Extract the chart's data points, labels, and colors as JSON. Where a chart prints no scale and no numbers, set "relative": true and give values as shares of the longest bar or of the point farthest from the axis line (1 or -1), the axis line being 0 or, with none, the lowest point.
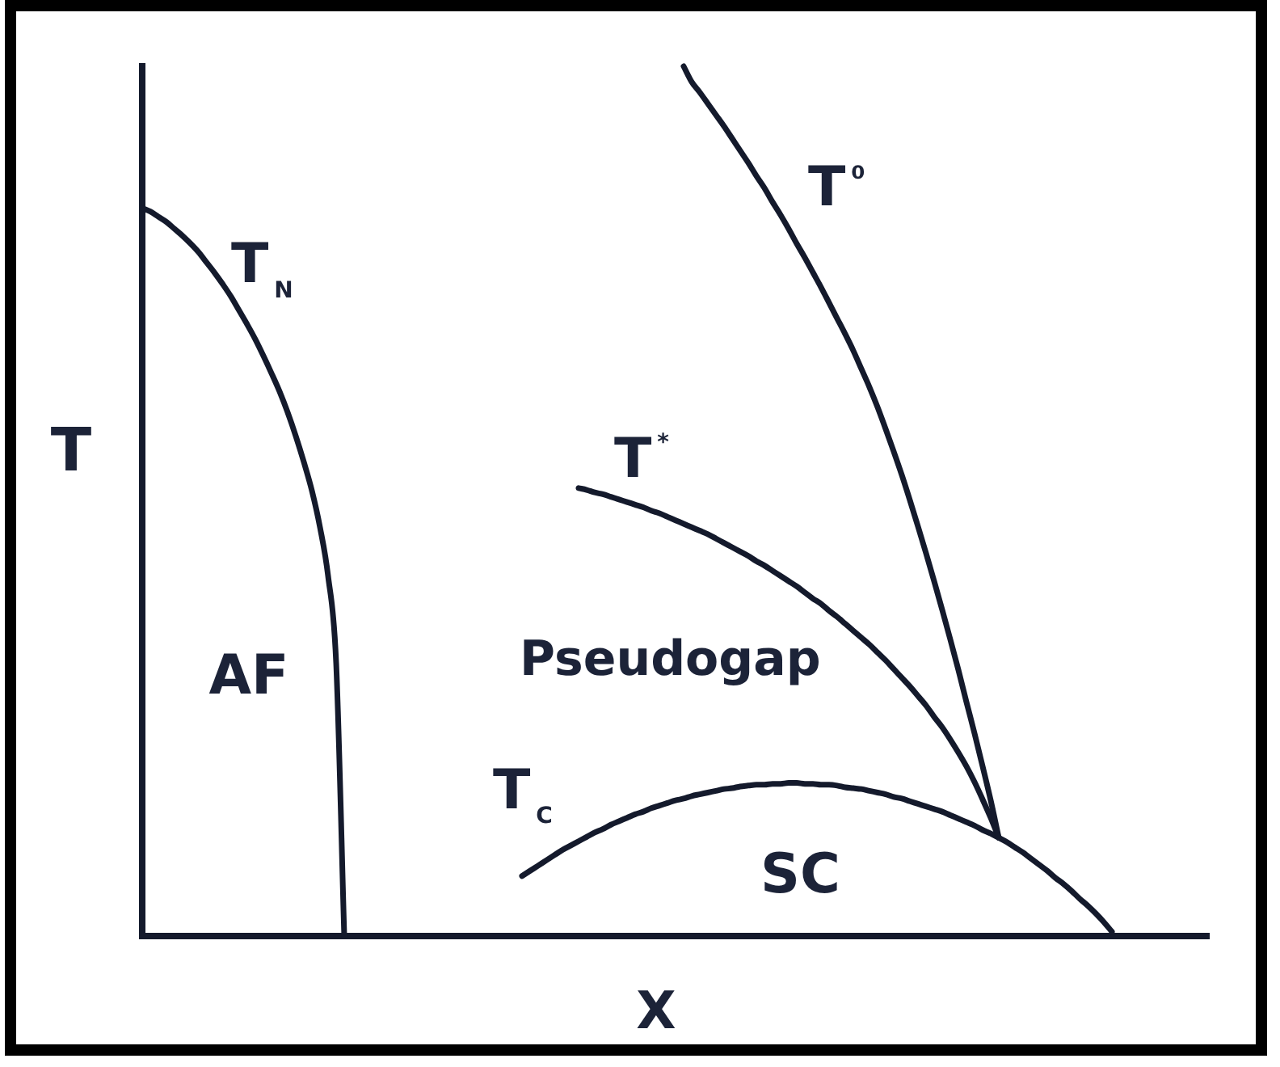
{
  "chart_data": {
    "type": "line",
    "xlabel": "X",
    "ylabel": "T",
    "relative": true,
    "tick_labels": false,
    "legend": false,
    "line_style": "solid",
    "categories": [
      null,
      null,
      null,
      null,
      null,
      null,
      null,
      null,
      null,
      null,
      null,
      null,
      null,
      null,
      null,
      null,
      null,
      null,
      null,
      null,
      null,
      null,
      null,
      null,
      null,
      null,
      null,
      null,
      null,
      null,
      null,
      null,
      null,
      null,
      null,
      null,
      null,
      null,
      null,
      null,
      null,
      null,
      null,
      null,
      null,
      null,
      null,
      null,
      null,
      null,
      null,
      null,
      null,
      null,
      null,
      null,
      null,
      null,
      null,
      null,
      null,
      null,
      null,
      null,
      null,
      null,
      null,
      null,
      null,
      null,
      null,
      null,
      null,
      null,
      null,
      null,
      null,
      null,
      null,
      null,
      null,
      null,
      null,
      null,
      null,
      null,
      null,
      null,
      null,
      null,
      null,
      null,
      null,
      null,
      null,
      null,
      null,
      null,
      null,
      null,
      null,
      null,
      null,
      null,
      null,
      null,
      null,
      null,
      null,
      null,
      null,
      null,
      null,
      null,
      null,
      null,
      null,
      null,
      null,
      null,
      null,
      null,
      null,
      null,
      null,
      null,
      null,
      null,
      null,
      null,
      null,
      null,
      null
    ],
    "series": [
      {
        "name": "T$_{N}$",
        "color": "#141a2c",
        "values": [
          0.837,
          0.833,
          0.827,
          0.821,
          0.813,
          0.805,
          0.796,
          0.786,
          0.774,
          0.762,
          0.749,
          0.735,
          0.719,
          0.703,
          0.686,
          0.667,
          0.647,
          0.626,
          0.602,
          0.575,
          0.545,
          0.512,
          0.47,
          0.414,
          0.314,
          0,
          null,
          null,
          null,
          null,
          null,
          null,
          null,
          null,
          null,
          null,
          null,
          null,
          null,
          null,
          null,
          null,
          null,
          null,
          null,
          null,
          null,
          null,
          null,
          null,
          null,
          null,
          null,
          null,
          null,
          null,
          null,
          null,
          null,
          null,
          null,
          null,
          null,
          null,
          null,
          null,
          null,
          null,
          null,
          null,
          null,
          null,
          null,
          null,
          null,
          null,
          null,
          null,
          null,
          null,
          null,
          null,
          null,
          null,
          null,
          null,
          null,
          null,
          null,
          null,
          null,
          null,
          null,
          null,
          null,
          null,
          null,
          null,
          null,
          null,
          null,
          null,
          null,
          null,
          null,
          null,
          null,
          null,
          null,
          null,
          null,
          null,
          null,
          null,
          null,
          null,
          null,
          null,
          null,
          null,
          null,
          null,
          null,
          null,
          null,
          null,
          null,
          null,
          null,
          null,
          null,
          null,
          null
        ]
      },
      {
        "name": "T⁰",
        "color": "#141a2c",
        "values": [
          null,
          null,
          null,
          null,
          null,
          null,
          null,
          null,
          null,
          null,
          null,
          null,
          null,
          null,
          null,
          null,
          null,
          null,
          null,
          null,
          null,
          null,
          null,
          null,
          null,
          null,
          null,
          null,
          null,
          null,
          null,
          null,
          null,
          null,
          null,
          null,
          null,
          null,
          null,
          null,
          null,
          null,
          null,
          null,
          null,
          null,
          null,
          null,
          null,
          null,
          null,
          null,
          null,
          null,
          null,
          null,
          null,
          null,
          null,
          null,
          null,
          null,
          null,
          null,
          null,
          null,
          null,
          1,
          0.982,
          0.97,
          0.957,
          0.944,
          0.931,
          0.917,
          0.903,
          0.889,
          0.874,
          0.86,
          0.844,
          0.829,
          0.813,
          0.796,
          0.78,
          0.763,
          0.746,
          0.728,
          0.71,
          0.692,
          0.673,
          0.652,
          0.631,
          0.608,
          0.583,
          0.557,
          0.53,
          0.501,
          0.471,
          0.44,
          0.408,
          0.375,
          0.341,
          0.306,
          0.269,
          0.233,
          0.195,
          0.156,
          0.113,
          null,
          null,
          null,
          null,
          null,
          null,
          null,
          null,
          null,
          null,
          null,
          null,
          null,
          null,
          null,
          null,
          null,
          null,
          null,
          null,
          null,
          null,
          null,
          null,
          null,
          null
        ]
      },
      {
        "name": "T$^{*}$",
        "color": "#141a2c",
        "values": [
          null,
          null,
          null,
          null,
          null,
          null,
          null,
          null,
          null,
          null,
          null,
          null,
          null,
          null,
          null,
          null,
          null,
          null,
          null,
          null,
          null,
          null,
          null,
          null,
          null,
          null,
          null,
          null,
          null,
          null,
          null,
          null,
          null,
          null,
          null,
          null,
          null,
          null,
          null,
          null,
          null,
          null,
          null,
          null,
          null,
          null,
          null,
          null,
          null,
          null,
          null,
          null,
          null,
          null,
          0.515,
          0.513,
          0.51,
          0.508,
          0.505,
          0.502,
          0.499,
          0.496,
          0.493,
          0.489,
          0.486,
          0.482,
          0.478,
          0.474,
          0.47,
          0.466,
          0.462,
          0.457,
          0.452,
          0.447,
          0.442,
          0.437,
          0.431,
          0.426,
          0.42,
          0.414,
          0.408,
          0.402,
          0.395,
          0.388,
          0.382,
          0.374,
          0.367,
          0.359,
          0.351,
          0.343,
          0.335,
          0.326,
          0.317,
          0.307,
          0.297,
          0.287,
          0.276,
          0.265,
          0.252,
          0.24,
          0.226,
          0.211,
          0.195,
          0.177,
          0.157,
          0.136,
          0.113,
          null,
          null,
          null,
          null,
          null,
          null,
          null,
          null,
          null,
          null,
          null,
          null,
          null,
          null,
          null,
          null,
          null,
          null,
          null,
          null,
          null,
          null,
          null,
          null,
          null,
          null
        ]
      },
      {
        "name": "T$_{C}$",
        "color": "#141a2c",
        "values": [
          null,
          null,
          null,
          null,
          null,
          null,
          null,
          null,
          null,
          null,
          null,
          null,
          null,
          null,
          null,
          null,
          null,
          null,
          null,
          null,
          null,
          null,
          null,
          null,
          null,
          null,
          null,
          null,
          null,
          null,
          null,
          null,
          null,
          null,
          null,
          null,
          null,
          null,
          null,
          null,
          null,
          null,
          null,
          null,
          null,
          null,
          null,
          0.069,
          0.075,
          0.081,
          0.087,
          0.093,
          0.099,
          0.104,
          0.109,
          0.114,
          0.119,
          0.123,
          0.128,
          0.132,
          0.136,
          0.14,
          0.143,
          0.147,
          0.15,
          0.153,
          0.156,
          0.158,
          0.161,
          0.163,
          0.165,
          0.167,
          0.169,
          0.17,
          0.172,
          0.173,
          0.174,
          0.174,
          0.175,
          0.175,
          0.176,
          0.176,
          0.175,
          0.175,
          0.174,
          0.174,
          0.173,
          0.171,
          0.17,
          0.169,
          0.167,
          0.165,
          0.163,
          0.16,
          0.158,
          0.155,
          0.152,
          0.149,
          0.146,
          0.143,
          0.139,
          0.135,
          0.131,
          0.127,
          0.122,
          0.118,
          0.113,
          0.108,
          0.102,
          0.096,
          0.089,
          0.082,
          0.075,
          0.067,
          0.06,
          0.052,
          0.043,
          0.035,
          0.026,
          0.016,
          0.005,
          null,
          null,
          null,
          null,
          null,
          null,
          null,
          null,
          null,
          null,
          null,
          null
        ]
      }
    ],
    "annotations": [
      "AF",
      "Pseudogap",
      "SC"
    ]
  }
}
